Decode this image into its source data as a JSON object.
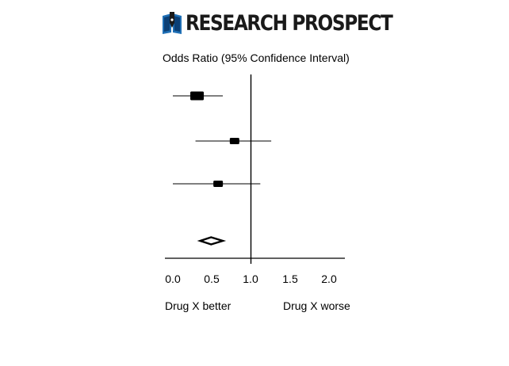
{
  "logo": {
    "text": "RESEARCH PROSPECT",
    "icon": "book-pen-icon"
  },
  "chart_data": {
    "type": "forest",
    "title": "Odds Ratio (95% Confidence Interval)",
    "xlim": [
      0.0,
      2.0
    ],
    "x_ticks": [
      "0.0",
      "0.5",
      "1.0",
      "1.5",
      "2.0"
    ],
    "reference_line": 1.0,
    "studies": [
      {
        "estimate": 0.31,
        "ci": [
          0.0,
          0.64
        ],
        "weight": "large"
      },
      {
        "estimate": 0.79,
        "ci": [
          0.29,
          1.26
        ],
        "weight": "medium"
      },
      {
        "estimate": 0.58,
        "ci": [
          0.0,
          1.12
        ],
        "weight": "medium"
      }
    ],
    "pooled": {
      "estimate": 0.49,
      "ci": [
        0.35,
        0.64
      ]
    },
    "favours_left": "Drug X better",
    "favours_right": "Drug X worse"
  },
  "colors": {
    "ink": "#000000",
    "logo_dark": "#1a1a1a",
    "logo_accent": "#1f6fb5"
  }
}
